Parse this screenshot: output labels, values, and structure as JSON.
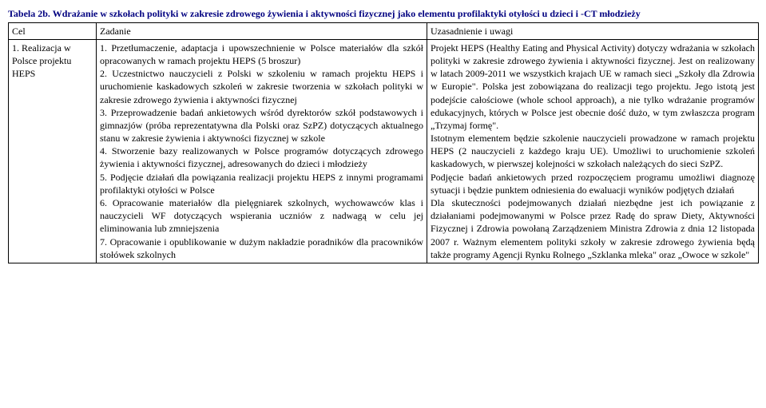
{
  "title": "Tabela 2b. Wdrażanie w szkołach polityki w zakresie zdrowego żywienia i aktywności fizycznej jako elementu profilaktyki otyłości u dzieci i -CT młodzieży",
  "header": {
    "c1": "Cel",
    "c2": "Zadanie",
    "c3": "Uzasadnienie i uwagi"
  },
  "row": {
    "c1": "1. Realizacja w Polsce projektu HEPS",
    "c2": "1. Przetłumaczenie, adaptacja i upowszechnienie w Polsce materiałów dla szkół opracowanych w ramach projektu HEPS (5 broszur)\n2. Uczestnictwo nauczycieli z Polski w szkoleniu w ramach projektu HEPS i uruchomienie kaskadowych szkoleń w zakresie tworzenia w szkołach polityki w zakresie zdrowego żywienia i aktywności fizycznej\n3. Przeprowadzenie badań ankietowych wśród dyrektorów szkół podstawowych i gimnazjów (próba reprezentatywna dla Polski oraz SzPZ) dotyczących aktualnego stanu w zakresie żywienia i aktywności fizycznej w szkole\n4. Stworzenie bazy realizowanych w Polsce programów dotyczących zdrowego żywienia i aktywności fizycznej, adresowanych do dzieci i młodzieży\n5. Podjęcie działań dla powiązania realizacji projektu HEPS z innymi programami profilaktyki otyłości w Polsce\n6. Opracowanie materiałów dla pielęgniarek szkolnych, wychowawców klas i nauczycieli WF dotyczących wspierania uczniów z nadwagą w celu jej eliminowania lub zmniejszenia\n7. Opracowanie i opublikowanie w dużym nakładzie poradników dla pracowników stołówek szkolnych",
    "c3": "Projekt HEPS (Healthy Eating and Physical Activity) dotyczy wdrażania w szkołach polityki w zakresie zdrowego żywienia i aktywności fizycznej. Jest on realizowany w latach 2009-2011 we wszystkich krajach UE w ramach sieci „Szkoły dla Zdrowia w Europie\". Polska jest zobowiązana do realizacji tego projektu. Jego istotą jest podejście całościowe (whole school approach), a nie tylko wdrażanie programów edukacyjnych, których w Polsce jest obecnie dość dużo, w tym zwłaszcza program „Trzymaj formę\".\nIstotnym elementem będzie szkolenie nauczycieli prowadzone w ramach projektu HEPS (2 nauczycieli z każdego kraju UE). Umożliwi to uruchomienie szkoleń kaskadowych, w pierwszej kolejności w szkołach należących do sieci SzPZ.\nPodjęcie badań ankietowych przed rozpoczęciem programu umożliwi diagnozę sytuacji i będzie punktem odniesienia do ewaluacji wyników podjętych działań\nDla skuteczności podejmowanych działań niezbędne jest ich powiązanie z działaniami podejmowanymi w Polsce przez Radę do spraw Diety, Aktywności Fizycznej i Zdrowia powołaną Zarządzeniem Ministra Zdrowia z dnia 12 listopada 2007 r. Ważnym elementem polityki szkoły w zakresie zdrowego żywienia będą także programy Agencji Rynku Rolnego „Szklanka mleka\" oraz „Owoce w szkole\""
  }
}
